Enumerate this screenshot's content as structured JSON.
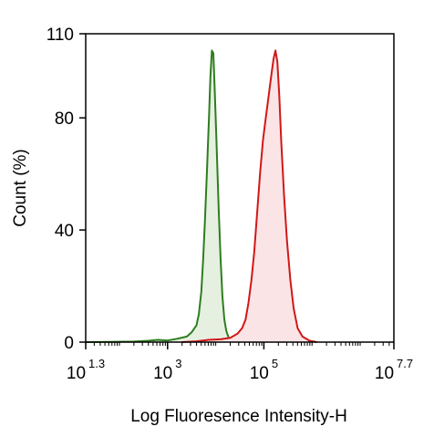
{
  "chart_data": {
    "type": "area",
    "title": "",
    "xlabel": "Log Fluoresence Intensity-H",
    "ylabel": "Count  (%)",
    "x_scale": "log10",
    "xlim": [
      1.3,
      7.7
    ],
    "ylim": [
      0,
      110
    ],
    "x_ticks": [
      {
        "base": "10",
        "exp": "1.3"
      },
      {
        "base": "10",
        "exp": "3"
      },
      {
        "base": "10",
        "exp": "5"
      },
      {
        "base": "10",
        "exp": "7.7"
      }
    ],
    "y_ticks": [
      "0",
      "40",
      "80",
      "110"
    ],
    "grid": false,
    "series": [
      {
        "color": "#2e7d1f",
        "fill": "#e6f0e1",
        "points": [
          [
            1.3,
            0
          ],
          [
            1.8,
            0.1
          ],
          [
            2.3,
            0.2
          ],
          [
            2.6,
            0.5
          ],
          [
            2.8,
            0.8
          ],
          [
            3.0,
            0.6
          ],
          [
            3.2,
            1.2
          ],
          [
            3.4,
            2.0
          ],
          [
            3.5,
            3.5
          ],
          [
            3.6,
            6
          ],
          [
            3.65,
            10
          ],
          [
            3.7,
            18
          ],
          [
            3.74,
            30
          ],
          [
            3.78,
            45
          ],
          [
            3.82,
            62
          ],
          [
            3.86,
            80
          ],
          [
            3.89,
            95
          ],
          [
            3.92,
            104
          ],
          [
            3.95,
            103
          ],
          [
            3.98,
            90
          ],
          [
            4.02,
            70
          ],
          [
            4.06,
            48
          ],
          [
            4.1,
            30
          ],
          [
            4.14,
            16
          ],
          [
            4.18,
            8
          ],
          [
            4.22,
            4
          ],
          [
            4.27,
            1.5
          ],
          [
            4.35,
            0.5
          ],
          [
            4.5,
            0
          ]
        ]
      },
      {
        "color": "#d01818",
        "fill": "#fbe4e6",
        "points": [
          [
            3.3,
            0
          ],
          [
            3.6,
            0.3
          ],
          [
            3.85,
            0.8
          ],
          [
            4.1,
            1
          ],
          [
            4.3,
            1.5
          ],
          [
            4.45,
            3
          ],
          [
            4.55,
            5
          ],
          [
            4.62,
            8
          ],
          [
            4.68,
            14
          ],
          [
            4.74,
            22
          ],
          [
            4.8,
            32
          ],
          [
            4.86,
            46
          ],
          [
            4.92,
            60
          ],
          [
            4.98,
            72
          ],
          [
            5.04,
            80
          ],
          [
            5.1,
            88
          ],
          [
            5.16,
            96
          ],
          [
            5.2,
            101
          ],
          [
            5.24,
            104
          ],
          [
            5.28,
            100
          ],
          [
            5.32,
            88
          ],
          [
            5.36,
            72
          ],
          [
            5.42,
            52
          ],
          [
            5.48,
            36
          ],
          [
            5.55,
            22
          ],
          [
            5.62,
            12
          ],
          [
            5.7,
            5
          ],
          [
            5.8,
            2
          ],
          [
            5.95,
            0.5
          ],
          [
            6.1,
            0
          ]
        ]
      }
    ]
  }
}
